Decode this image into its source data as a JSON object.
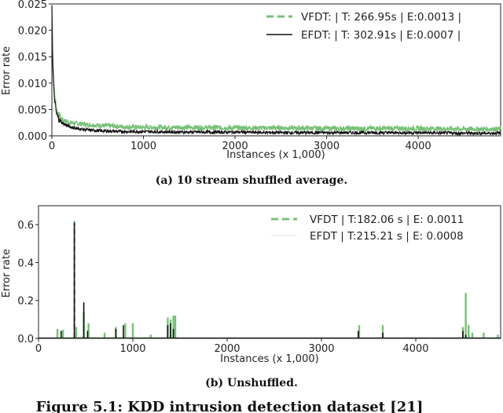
{
  "chart_data": [
    {
      "type": "line",
      "xlabel": "Instances (x 1,000)",
      "ylabel": "Error rate",
      "xlim": [
        0,
        4900
      ],
      "ylim": [
        0,
        0.025
      ],
      "xticks": [
        0,
        1000,
        2000,
        3000,
        4000
      ],
      "xtick_labels": [
        "0",
        "1000",
        "2000",
        "3000",
        "4000"
      ],
      "yticks": [
        0,
        0.005,
        0.01,
        0.015,
        0.02,
        0.025
      ],
      "ytick_labels": [
        "0.000",
        "0.005",
        "0.010",
        "0.015",
        "0.020",
        "0.025"
      ],
      "legend_position": "top-right",
      "caption": "(a) 10 stream shuffled average.",
      "series": [
        {
          "name": "VFDT: | T: 266.95s | E:0.0013 |",
          "color": "#77c077",
          "style": "dashed",
          "x": [
            0,
            10,
            25,
            50,
            75,
            100,
            150,
            200,
            300,
            400,
            600,
            800,
            1000,
            1500,
            2000,
            2500,
            3000,
            3500,
            4000,
            4500,
            4900
          ],
          "y": [
            0.025,
            0.015,
            0.0085,
            0.005,
            0.0038,
            0.0032,
            0.0028,
            0.0025,
            0.0023,
            0.0021,
            0.0019,
            0.0017,
            0.0016,
            0.0016,
            0.0015,
            0.0015,
            0.0014,
            0.0014,
            0.0014,
            0.0013,
            0.0013
          ]
        },
        {
          "name": "EFDT: | T: 302.91s |  E:0.0007 |",
          "color": "#111111",
          "style": "solid",
          "x": [
            0,
            10,
            25,
            50,
            75,
            100,
            150,
            200,
            300,
            400,
            600,
            800,
            1000,
            1500,
            2000,
            2500,
            3000,
            3500,
            4000,
            4500,
            4900
          ],
          "y": [
            0.025,
            0.013,
            0.0075,
            0.0042,
            0.0032,
            0.0026,
            0.0021,
            0.0017,
            0.0013,
            0.0011,
            0.0009,
            0.0008,
            0.0008,
            0.0007,
            0.0007,
            0.0006,
            0.0006,
            0.0006,
            0.0006,
            0.0005,
            0.0005
          ]
        }
      ]
    },
    {
      "type": "line",
      "xlabel": "Instances (x 1,000)",
      "ylabel": "Error rate",
      "xlim": [
        0,
        4900
      ],
      "ylim": [
        0,
        0.7
      ],
      "xticks": [
        0,
        1000,
        2000,
        3000,
        4000
      ],
      "xtick_labels": [
        "0",
        "1000",
        "2000",
        "3000",
        "4000"
      ],
      "yticks": [
        0,
        0.2,
        0.4,
        0.6
      ],
      "ytick_labels": [
        "0.0",
        "0.2",
        "0.4",
        "0.6"
      ],
      "legend_position": "top-right",
      "caption": "(b) Unshuffled.",
      "baseline": 0.002,
      "series": [
        {
          "name": "VFDT | T:182.06 s | E: 0.0011",
          "color": "#77c077",
          "style": "dashed",
          "spikes": [
            [
              200,
              0.05
            ],
            [
              260,
              0.045
            ],
            [
              380,
              0.62
            ],
            [
              400,
              0.06
            ],
            [
              480,
              0.14
            ],
            [
              530,
              0.08
            ],
            [
              700,
              0.03
            ],
            [
              820,
              0.06
            ],
            [
              920,
              0.08
            ],
            [
              1000,
              0.08
            ],
            [
              1190,
              0.02
            ],
            [
              1370,
              0.11
            ],
            [
              1400,
              0.1
            ],
            [
              1430,
              0.12
            ],
            [
              1450,
              0.12
            ],
            [
              3400,
              0.07
            ],
            [
              3650,
              0.07
            ],
            [
              4500,
              0.06
            ],
            [
              4530,
              0.24
            ],
            [
              4560,
              0.07
            ],
            [
              4600,
              0.03
            ],
            [
              4720,
              0.03
            ],
            [
              4870,
              0.02
            ]
          ]
        },
        {
          "name": "EFDT | T:215.21 s | E: 0.0008",
          "color": "#111111",
          "style": "solid",
          "spikes": [
            [
              240,
              0.04
            ],
            [
              380,
              0.61
            ],
            [
              480,
              0.19
            ],
            [
              520,
              0.04
            ],
            [
              820,
              0.05
            ],
            [
              900,
              0.07
            ],
            [
              1370,
              0.07
            ],
            [
              1400,
              0.08
            ],
            [
              1430,
              0.05
            ],
            [
              3390,
              0.04
            ],
            [
              3650,
              0.03
            ],
            [
              4500,
              0.04
            ],
            [
              4530,
              0.02
            ]
          ]
        }
      ]
    }
  ],
  "figure_caption": "Figure 5.1: KDD intrusion detection dataset [21]"
}
